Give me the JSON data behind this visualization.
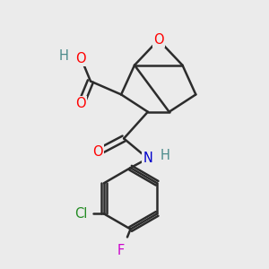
{
  "background_color": "#ebebeb",
  "bond_color": "#2c2c2c",
  "bond_width": 1.8,
  "atom_colors": {
    "O": "#ff0000",
    "N": "#0000cc",
    "Cl": "#228b22",
    "F": "#cc00cc",
    "H": "#4a8a8a",
    "C": "#2c2c2c"
  },
  "fs": 10.5
}
